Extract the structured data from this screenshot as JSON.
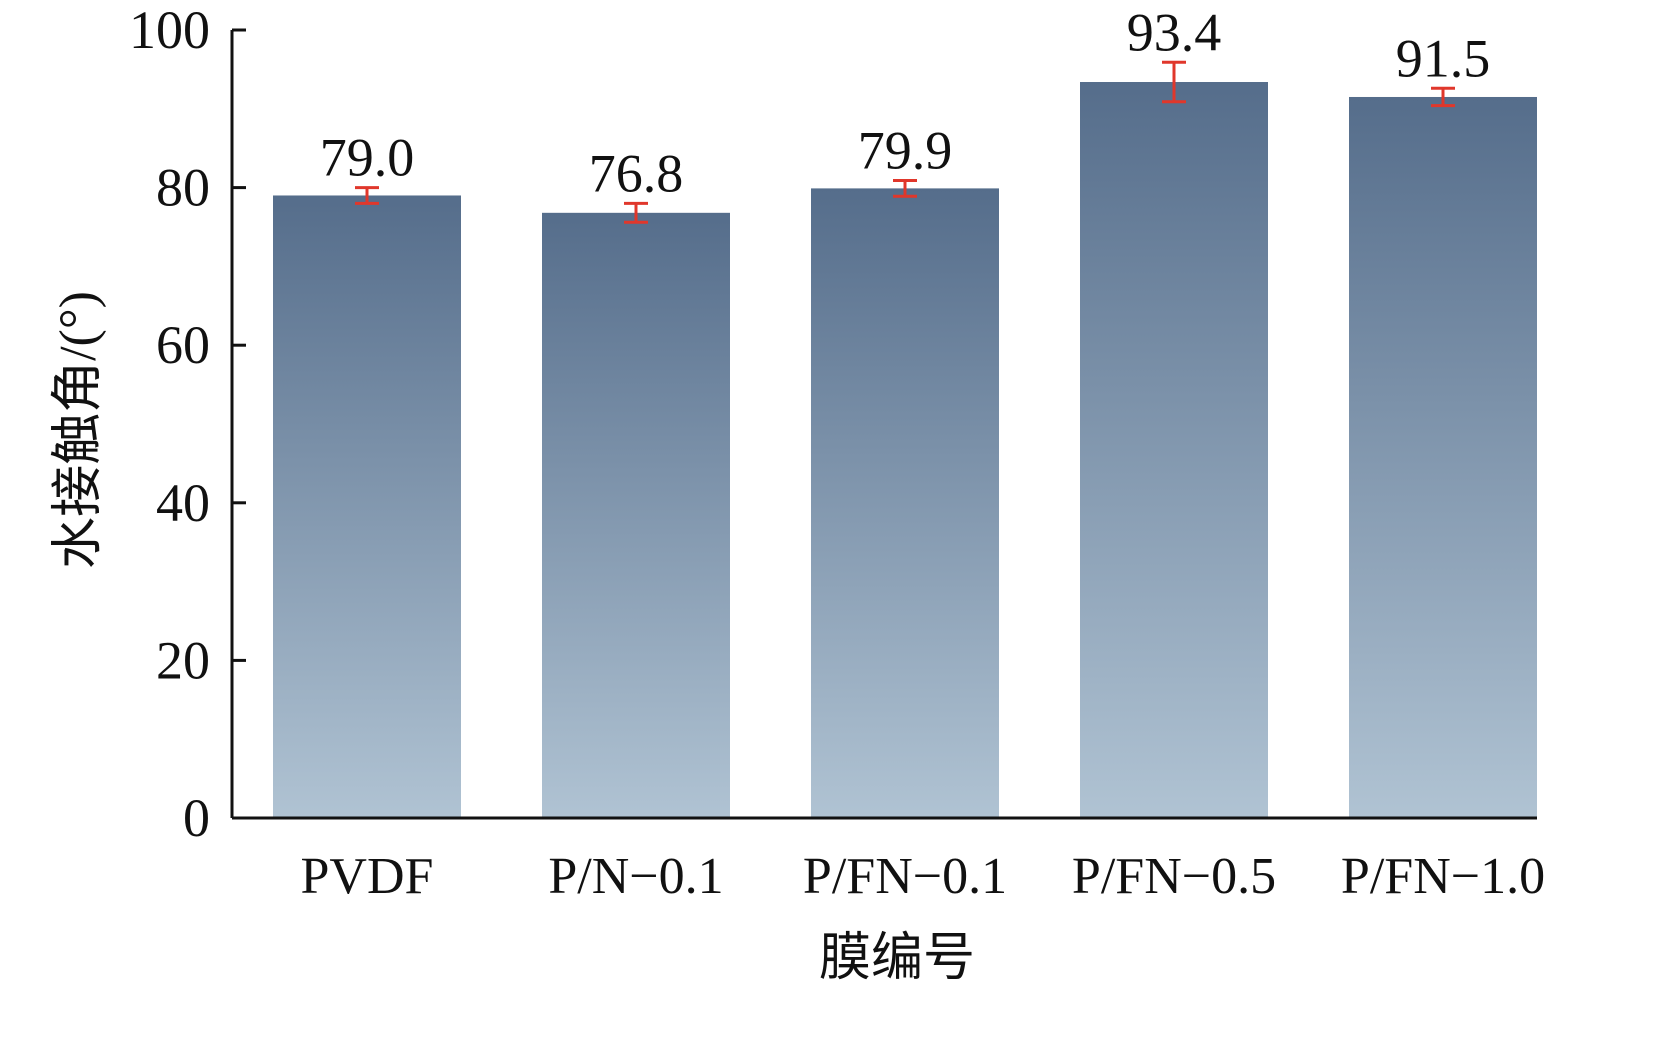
{
  "chart_data": {
    "type": "bar",
    "title": "",
    "xlabel": "膜编号",
    "ylabel": "水接触角/(°)",
    "categories": [
      "PVDF",
      "P/N-0.1",
      "P/FN-0.1",
      "P/FN-0.5",
      "P/FN-1.0"
    ],
    "values": [
      79.0,
      76.8,
      79.9,
      93.4,
      91.5
    ],
    "value_labels": [
      "79.0",
      "76.8",
      "79.9",
      "93.4",
      "91.5"
    ],
    "errors": [
      1.0,
      1.2,
      1.0,
      2.5,
      1.1
    ],
    "ylim": [
      0,
      100
    ],
    "yticks": [
      "0",
      "20",
      "40",
      "60",
      "80",
      "100"
    ],
    "grid": false,
    "colors": {
      "bar_top": "#556d8b",
      "bar_bottom": "#b0c3d3",
      "error": "#e0372b",
      "axis": "#111111"
    }
  }
}
